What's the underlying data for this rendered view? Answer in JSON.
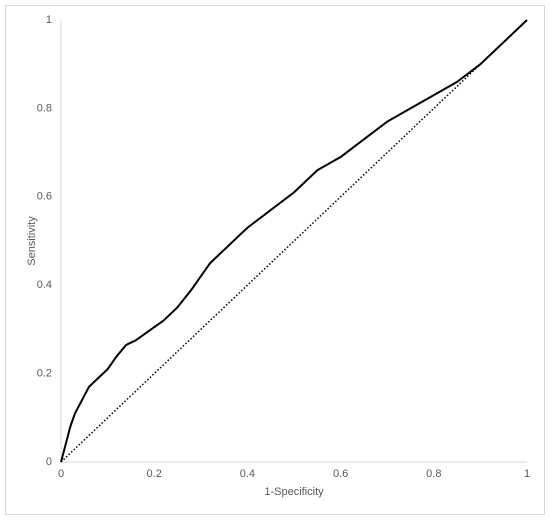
{
  "chart_data": {
    "type": "line",
    "x_label": "1-Specificity",
    "y_label": "Sensitivity",
    "x": [
      0,
      0.01,
      0.02,
      0.03,
      0.04,
      0.05,
      0.06,
      0.08,
      0.1,
      0.12,
      0.14,
      0.16,
      0.18,
      0.2,
      0.22,
      0.25,
      0.28,
      0.3,
      0.32,
      0.35,
      0.38,
      0.4,
      0.45,
      0.5,
      0.55,
      0.6,
      0.65,
      0.7,
      0.75,
      0.8,
      0.85,
      0.9,
      0.95,
      1
    ],
    "series": [
      {
        "color": "#000000",
        "line_style": "solid",
        "values": [
          0,
          0.04,
          0.08,
          0.11,
          0.13,
          0.15,
          0.17,
          0.19,
          0.21,
          0.24,
          0.265,
          0.275,
          0.29,
          0.305,
          0.32,
          0.35,
          0.39,
          0.42,
          0.45,
          0.48,
          0.51,
          0.53,
          0.57,
          0.61,
          0.66,
          0.69,
          0.73,
          0.77,
          0.8,
          0.83,
          0.86,
          0.9,
          0.95,
          1
        ]
      },
      {
        "color": "#000000",
        "line_style": "dotted",
        "values": [
          0,
          0.01,
          0.02,
          0.03,
          0.04,
          0.05,
          0.06,
          0.08,
          0.1,
          0.12,
          0.14,
          0.16,
          0.18,
          0.2,
          0.22,
          0.25,
          0.28,
          0.3,
          0.32,
          0.35,
          0.38,
          0.4,
          0.45,
          0.5,
          0.55,
          0.6,
          0.65,
          0.7,
          0.75,
          0.8,
          0.85,
          0.9,
          0.95,
          1
        ]
      }
    ],
    "xlim": [
      0,
      1
    ],
    "ylim": [
      0,
      1
    ],
    "xticks": [
      0,
      0.2,
      0.4,
      0.6,
      0.8,
      1
    ],
    "yticks": [
      0,
      0.2,
      0.4,
      0.6,
      0.8,
      1
    ],
    "grid": false
  }
}
